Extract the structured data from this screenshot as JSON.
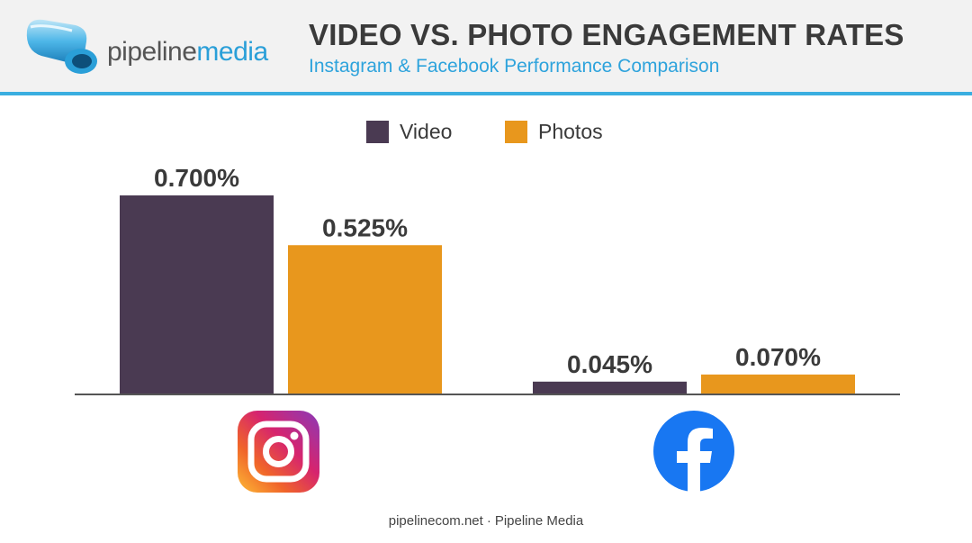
{
  "brand": {
    "name_part1": "pipeline",
    "name_part2": "media"
  },
  "header": {
    "title": "VIDEO VS. PHOTO ENGAGEMENT RATES",
    "subtitle": "Instagram & Facebook Performance Comparison"
  },
  "colors": {
    "video": "#4a3a52",
    "photos": "#e8971d",
    "header_accent": "#3aaee0",
    "baseline": "#555555"
  },
  "chart_data": {
    "type": "bar",
    "categories": [
      "Instagram",
      "Facebook"
    ],
    "category_icons": [
      "instagram-icon",
      "facebook-icon"
    ],
    "series": [
      {
        "name": "Video",
        "values": [
          0.7,
          0.045
        ],
        "labels": [
          "0.700%",
          "0.045%"
        ],
        "color": "#4a3a52"
      },
      {
        "name": "Photos",
        "values": [
          0.525,
          0.07
        ],
        "labels": [
          "0.525%",
          "0.070%"
        ],
        "color": "#e8971d"
      }
    ],
    "ylim": [
      0,
      0.7
    ],
    "xlabel": "",
    "ylabel": "",
    "grid": false,
    "legend_position": "top-center"
  },
  "footer": {
    "site": "pipelinecom.net",
    "separator": "·",
    "company": "Pipeline Media"
  }
}
